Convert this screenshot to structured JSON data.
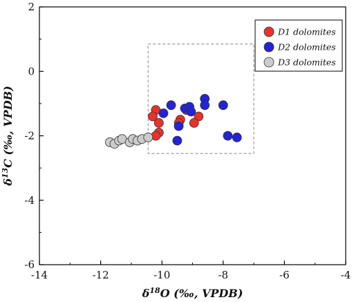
{
  "chart_data": {
    "type": "scatter",
    "title": "",
    "xlabel": {
      "delta": "δ",
      "sup": "18",
      "rest": "O (‰, VPDB)"
    },
    "ylabel": {
      "delta": "δ",
      "sup": "13",
      "rest": "C (‰, VPDB)"
    },
    "xlim": [
      -14,
      -4
    ],
    "ylim": [
      -6,
      2
    ],
    "xticks": [
      -14,
      -12,
      -10,
      -8,
      -6,
      -4
    ],
    "yticks": [
      -6,
      -4,
      -2,
      0,
      2
    ],
    "xtick_labels": [
      "-14",
      "-12",
      "-10",
      "-8",
      "-6",
      "-4"
    ],
    "ytick_labels": [
      "-6",
      "-4",
      "-2",
      "0",
      "2"
    ],
    "grid": false,
    "legend_position": "top-right",
    "highlight_box": {
      "x": [
        -10.45,
        -7.0
      ],
      "y": [
        -2.55,
        0.85
      ]
    },
    "series": [
      {
        "name": "D1 dolomites",
        "color": "#e8322c",
        "points": [
          [
            -10.2,
            -1.2
          ],
          [
            -10.3,
            -1.4
          ],
          [
            -10.1,
            -1.6
          ],
          [
            -10.1,
            -1.9
          ],
          [
            -10.2,
            -2.0
          ],
          [
            -9.4,
            -1.5
          ],
          [
            -9.45,
            -1.6
          ],
          [
            -8.8,
            -1.4
          ],
          [
            -8.95,
            -1.6
          ],
          [
            -9.2,
            -1.2
          ]
        ]
      },
      {
        "name": "D2 dolomites",
        "color": "#2323d8",
        "points": [
          [
            -9.7,
            -1.05
          ],
          [
            -9.95,
            -1.3
          ],
          [
            -9.25,
            -1.15
          ],
          [
            -9.1,
            -1.1
          ],
          [
            -9.05,
            -1.25
          ],
          [
            -9.45,
            -1.7
          ],
          [
            -9.5,
            -2.15
          ],
          [
            -8.6,
            -0.85
          ],
          [
            -8.6,
            -1.05
          ],
          [
            -8.0,
            -1.05
          ],
          [
            -7.85,
            -2.0
          ],
          [
            -7.55,
            -2.05
          ]
        ]
      },
      {
        "name": "D3 dolomites",
        "color": "#cccccc",
        "points": [
          [
            -11.7,
            -2.2
          ],
          [
            -11.55,
            -2.25
          ],
          [
            -11.4,
            -2.15
          ],
          [
            -11.3,
            -2.1
          ],
          [
            -11.05,
            -2.2
          ],
          [
            -10.95,
            -2.1
          ],
          [
            -10.8,
            -2.15
          ],
          [
            -10.65,
            -2.1
          ],
          [
            -10.45,
            -2.05
          ]
        ]
      }
    ]
  }
}
